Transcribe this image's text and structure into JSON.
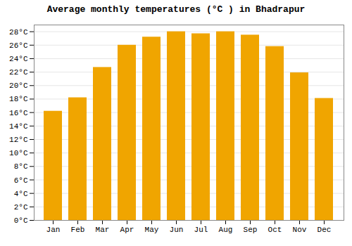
{
  "chart_data": {
    "type": "bar",
    "title": "Average monthly temperatures (°C ) in Bhadrapur",
    "categories": [
      "Jan",
      "Feb",
      "Mar",
      "Apr",
      "May",
      "Jun",
      "Jul",
      "Aug",
      "Sep",
      "Oct",
      "Nov",
      "Dec"
    ],
    "values": [
      16.2,
      18.2,
      22.7,
      26.0,
      27.2,
      28.0,
      27.7,
      28.0,
      27.5,
      25.8,
      21.9,
      18.1
    ],
    "color": "#F0A500",
    "ylim": [
      0,
      29
    ],
    "yticks": [
      {
        "value": 0,
        "label": "0°C"
      },
      {
        "value": 2,
        "label": "2°C"
      },
      {
        "value": 4,
        "label": "4°C"
      },
      {
        "value": 6,
        "label": "6°C"
      },
      {
        "value": 8,
        "label": "8°C"
      },
      {
        "value": 10,
        "label": "10°C"
      },
      {
        "value": 12,
        "label": "12°C"
      },
      {
        "value": 14,
        "label": "14°C"
      },
      {
        "value": 16,
        "label": "16°C"
      },
      {
        "value": 18,
        "label": "18°C"
      },
      {
        "value": 20,
        "label": "20°C"
      },
      {
        "value": 22,
        "label": "22°C"
      },
      {
        "value": 24,
        "label": "24°C"
      },
      {
        "value": 26,
        "label": "26°C"
      },
      {
        "value": 28,
        "label": "28°C"
      }
    ],
    "grid": true
  }
}
